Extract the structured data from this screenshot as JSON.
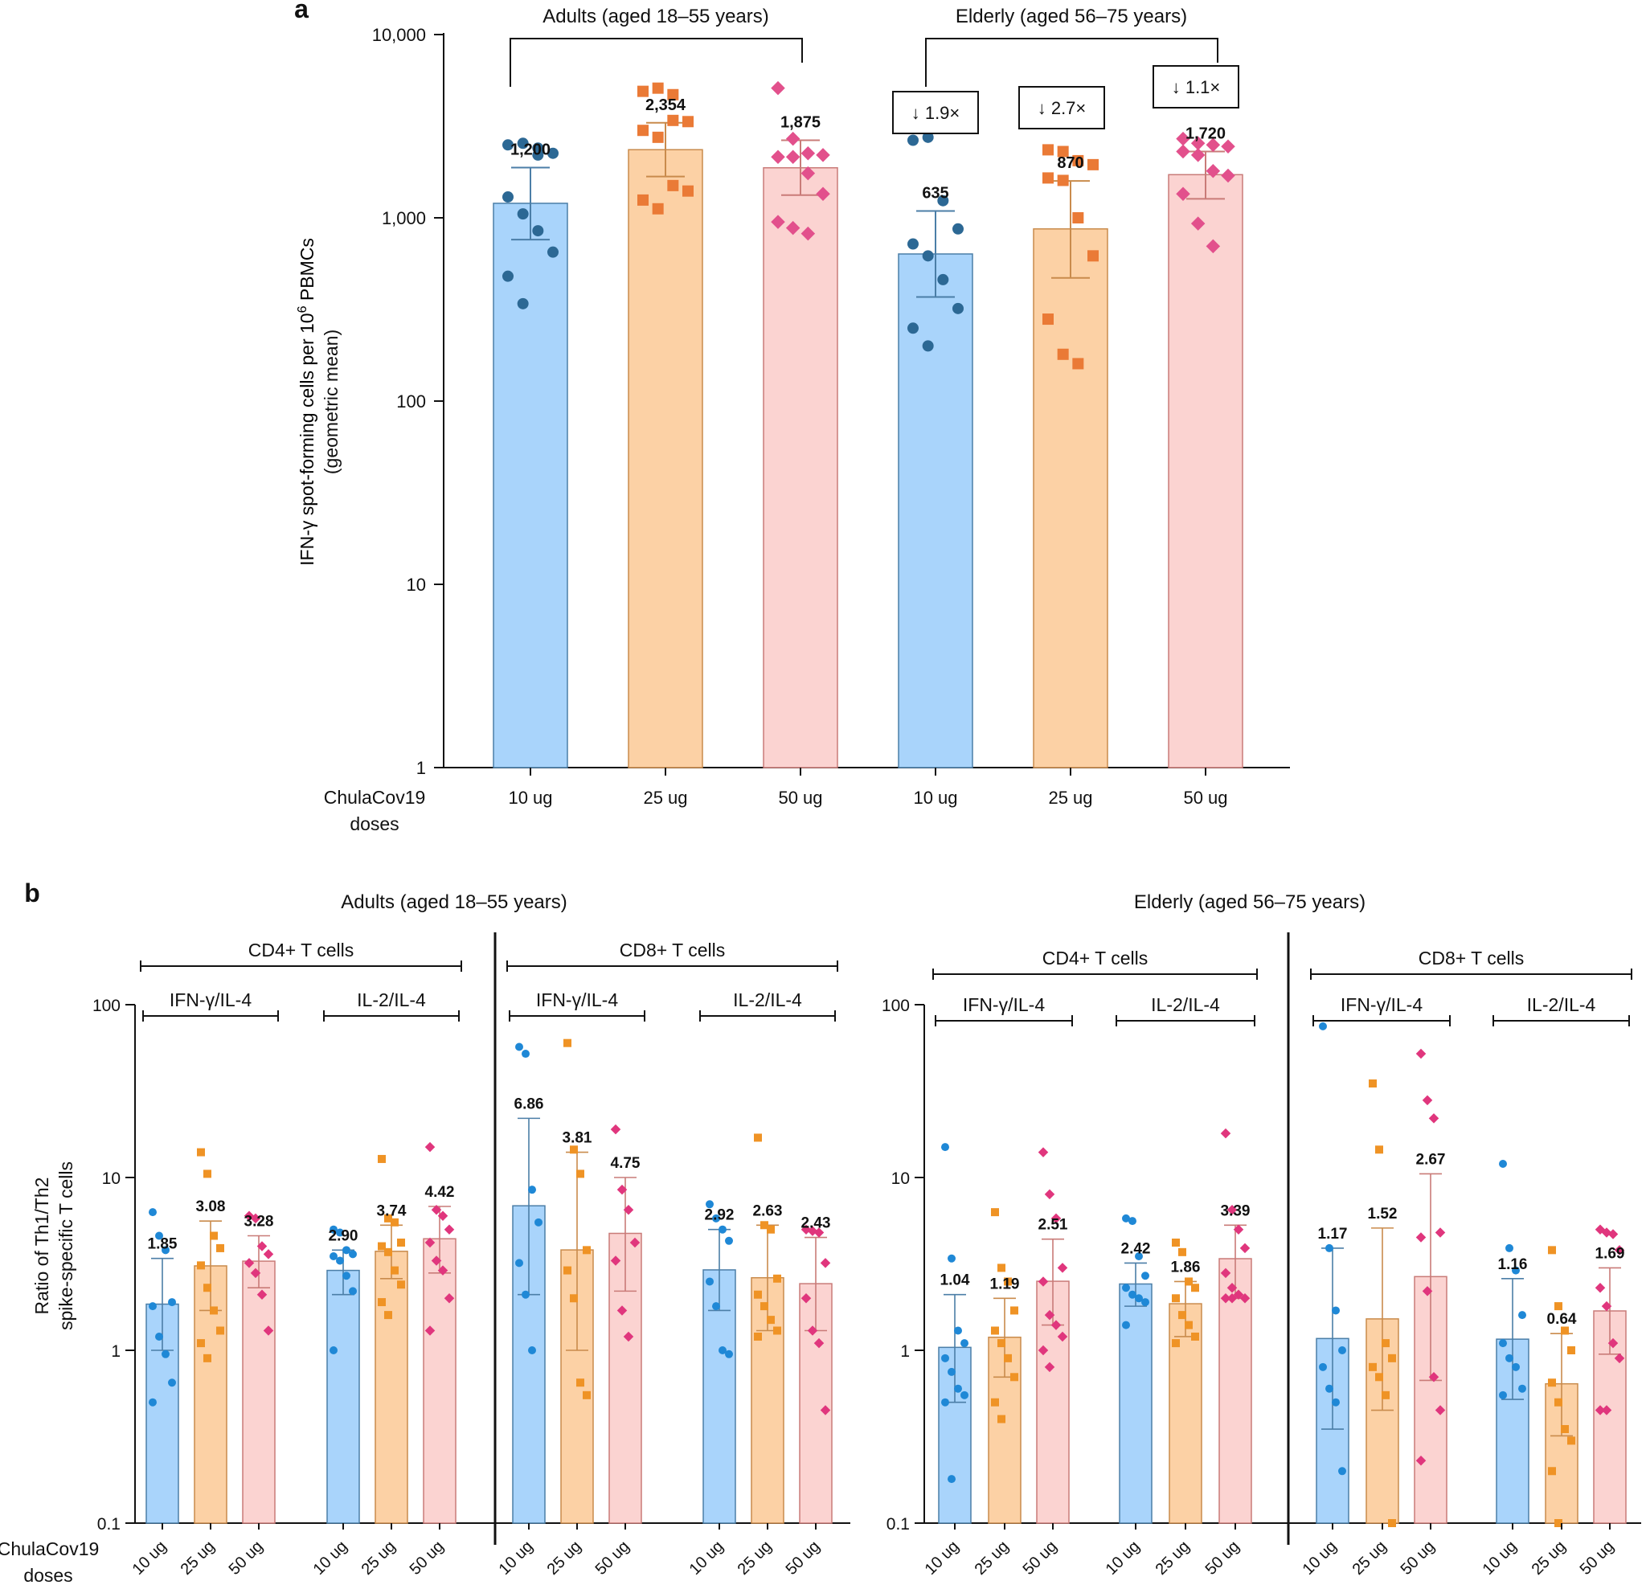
{
  "colors": {
    "blue_fill": "#a9d4fb",
    "blue_stroke": "#4b7ea7",
    "blue_point": "#2c6894",
    "blue_point_b": "#1f88d6",
    "orange_fill": "#fcd1a5",
    "orange_stroke": "#c98b4c",
    "orange_point": "#ea7a36",
    "orange_point_b": "#ef9325",
    "pink_fill": "#fbd3d1",
    "pink_stroke": "#c97b78",
    "pink_point": "#e2508c",
    "pink_point_b": "#e0367d",
    "axis": "#111111"
  },
  "chart_data": [
    {
      "panel_label": "a",
      "type": "bar",
      "yscale": "log",
      "ylim": [
        1,
        10000
      ],
      "yticks": [
        "1",
        "10",
        "100",
        "1,000",
        "10,000"
      ],
      "ylabel": "IFN-γ spot-forming cells per 10^6 PBMCs",
      "ylabel_line1_pre": "IFN-γ spot-forming cells per 10",
      "ylabel_line1_sup": "6",
      "ylabel_line1_post": " PBMCs",
      "ylabel_line2": "(geometric mean)",
      "xlabel_line1": "ChulaCov19",
      "xlabel_line2": "doses",
      "categories": [
        "10 ug",
        "25 ug",
        "50 ug",
        "10 ug",
        "25 ug",
        "50 ug"
      ],
      "groups": [
        {
          "label": "Adults (aged 18–55 years)"
        },
        {
          "label": "Elderly (aged 56–75 years)"
        }
      ],
      "fold_labels": [
        "↓ 1.9×",
        "↓ 2.7×",
        "↓ 1.1×"
      ],
      "bars": [
        {
          "dose": "10 ug",
          "color": "blue",
          "value": 1200,
          "label": "1,200",
          "err": [
            760,
            1880
          ],
          "points": [
            2500,
            2550,
            2200,
            2250,
            1300,
            1050,
            850,
            650,
            480,
            340,
            2400
          ]
        },
        {
          "dose": "25 ug",
          "color": "orange",
          "value": 2354,
          "label": "2,354",
          "err": [
            1680,
            3300
          ],
          "points": [
            4900,
            5100,
            3400,
            3350,
            3000,
            2750,
            1500,
            1400,
            1250,
            1120,
            4700
          ]
        },
        {
          "dose": "50 ug",
          "color": "pink",
          "value": 1875,
          "label": "1,875",
          "err": [
            1330,
            2650
          ],
          "points": [
            5100,
            2700,
            2250,
            2200,
            2150,
            2150,
            1750,
            1350,
            950,
            880,
            820
          ]
        },
        {
          "dose": "10 ug",
          "color": "blue",
          "value": 635,
          "label": "635",
          "err": [
            370,
            1090
          ],
          "points": [
            2650,
            2750,
            1240,
            870,
            720,
            620,
            460,
            320,
            250,
            200
          ]
        },
        {
          "dose": "25 ug",
          "color": "orange",
          "value": 870,
          "label": "870",
          "err": [
            470,
            1590
          ],
          "points": [
            2350,
            2300,
            2050,
            1950,
            1650,
            1600,
            1000,
            620,
            280,
            180,
            160
          ]
        },
        {
          "dose": "50 ug",
          "color": "pink",
          "value": 1720,
          "label": "1,720",
          "err": [
            1270,
            2300
          ],
          "points": [
            2700,
            2550,
            2500,
            2450,
            2300,
            2200,
            1800,
            1700,
            1350,
            930,
            700
          ]
        }
      ]
    },
    {
      "panel_label": "b",
      "type": "bar",
      "yscale": "log",
      "ylim": [
        0.1,
        100
      ],
      "yticks": [
        "0.1",
        "1",
        "10",
        "100"
      ],
      "ylabel_line1": "Ratio of Th1/Th2",
      "ylabel_line2": "spike-specific T cells",
      "xlabel_line1": "ChulaCov19",
      "xlabel_line2": "doses",
      "doses": [
        "10 ug",
        "25 ug",
        "50 ug"
      ],
      "groups": [
        {
          "label": "Adults (aged 18–55 years)",
          "subsets": [
            {
              "cell": "CD4+ T cells",
              "ratios": [
                {
                  "name": "IFN-γ/IL-4",
                  "bars": [
                    {
                      "value": 1.85,
                      "label": "1.85",
                      "err": [
                        1.0,
                        3.4
                      ],
                      "points": [
                        6.3,
                        4.6,
                        3.8,
                        1.9,
                        1.8,
                        1.2,
                        0.95,
                        0.65,
                        0.5
                      ]
                    },
                    {
                      "value": 3.08,
                      "label": "3.08",
                      "err": [
                        1.7,
                        5.6
                      ],
                      "points": [
                        14.0,
                        10.5,
                        4.6,
                        3.9,
                        3.1,
                        2.3,
                        1.7,
                        1.3,
                        1.1,
                        0.9
                      ]
                    },
                    {
                      "value": 3.28,
                      "label": "3.28",
                      "err": [
                        2.3,
                        4.6
                      ],
                      "points": [
                        6.0,
                        5.8,
                        4.0,
                        3.6,
                        3.2,
                        2.8,
                        2.1,
                        1.3
                      ]
                    }
                  ]
                },
                {
                  "name": "IL-2/IL-4",
                  "bars": [
                    {
                      "value": 2.9,
                      "label": "2.90",
                      "err": [
                        2.1,
                        3.8
                      ],
                      "points": [
                        5.0,
                        4.8,
                        3.8,
                        3.6,
                        3.5,
                        3.3,
                        2.7,
                        2.2,
                        1.0
                      ]
                    },
                    {
                      "value": 3.74,
                      "label": "3.74",
                      "err": [
                        2.6,
                        5.3
                      ],
                      "points": [
                        12.8,
                        5.8,
                        5.5,
                        4.2,
                        4.0,
                        3.7,
                        2.9,
                        2.4,
                        1.9,
                        1.6
                      ]
                    },
                    {
                      "value": 4.42,
                      "label": "4.42",
                      "err": [
                        2.8,
                        6.8
                      ],
                      "points": [
                        15.0,
                        6.5,
                        6.0,
                        5.0,
                        4.2,
                        3.3,
                        2.9,
                        2.0,
                        1.3
                      ]
                    }
                  ]
                }
              ]
            },
            {
              "cell": "CD8+ T cells",
              "ratios": [
                {
                  "name": "IFN-γ/IL-4",
                  "bars": [
                    {
                      "value": 6.86,
                      "label": "6.86",
                      "err": [
                        2.1,
                        22.0
                      ],
                      "points": [
                        57,
                        52,
                        8.5,
                        5.5,
                        3.2,
                        2.1,
                        1.0
                      ]
                    },
                    {
                      "value": 3.81,
                      "label": "3.81",
                      "err": [
                        1.0,
                        14.0
                      ],
                      "points": [
                        60,
                        14.5,
                        10.5,
                        3.8,
                        2.9,
                        2.0,
                        0.65,
                        0.55
                      ]
                    },
                    {
                      "value": 4.75,
                      "label": "4.75",
                      "err": [
                        2.2,
                        10.0
                      ],
                      "points": [
                        19.0,
                        8.5,
                        6.5,
                        4.2,
                        3.3,
                        1.7,
                        1.2
                      ]
                    }
                  ]
                },
                {
                  "name": "IL-2/IL-4",
                  "bars": [
                    {
                      "value": 2.92,
                      "label": "2.92",
                      "err": [
                        1.7,
                        5.0
                      ],
                      "points": [
                        7.0,
                        5.8,
                        5.0,
                        4.3,
                        2.5,
                        1.8,
                        1.0,
                        0.95
                      ]
                    },
                    {
                      "value": 2.63,
                      "label": "2.63",
                      "err": [
                        1.3,
                        5.3
                      ],
                      "points": [
                        17.0,
                        5.3,
                        5.0,
                        2.6,
                        2.1,
                        1.8,
                        1.5,
                        1.3,
                        1.2
                      ]
                    },
                    {
                      "value": 2.43,
                      "label": "2.43",
                      "err": [
                        1.3,
                        4.5
                      ],
                      "points": [
                        5.0,
                        4.9,
                        4.8,
                        3.2,
                        2.0,
                        1.3,
                        1.1,
                        0.45
                      ]
                    }
                  ]
                }
              ]
            }
          ]
        },
        {
          "label": "Elderly (aged 56–75 years)",
          "subsets": [
            {
              "cell": "CD4+ T cells",
              "ratios": [
                {
                  "name": "IFN-γ/IL-4",
                  "bars": [
                    {
                      "value": 1.04,
                      "label": "1.04",
                      "err": [
                        0.5,
                        2.1
                      ],
                      "points": [
                        15.0,
                        3.4,
                        1.3,
                        1.1,
                        0.9,
                        0.75,
                        0.6,
                        0.55,
                        0.5,
                        0.18
                      ]
                    },
                    {
                      "value": 1.19,
                      "label": "1.19",
                      "err": [
                        0.7,
                        2.0
                      ],
                      "points": [
                        6.3,
                        3.0,
                        2.5,
                        1.7,
                        1.3,
                        1.1,
                        0.9,
                        0.7,
                        0.5,
                        0.4
                      ]
                    },
                    {
                      "value": 2.51,
                      "label": "2.51",
                      "err": [
                        1.4,
                        4.4
                      ],
                      "points": [
                        14.0,
                        8.0,
                        5.8,
                        3.0,
                        2.5,
                        1.6,
                        1.4,
                        1.2,
                        1.0,
                        0.8
                      ]
                    }
                  ]
                },
                {
                  "name": "IL-2/IL-4",
                  "bars": [
                    {
                      "value": 2.42,
                      "label": "2.42",
                      "err": [
                        1.8,
                        3.2
                      ],
                      "points": [
                        5.8,
                        5.6,
                        3.5,
                        2.7,
                        2.3,
                        2.1,
                        2.0,
                        1.9,
                        1.4
                      ]
                    },
                    {
                      "value": 1.86,
                      "label": "1.86",
                      "err": [
                        1.2,
                        2.5
                      ],
                      "points": [
                        4.2,
                        3.7,
                        2.5,
                        2.3,
                        2.0,
                        1.6,
                        1.4,
                        1.2,
                        1.1
                      ]
                    },
                    {
                      "value": 3.39,
                      "label": "3.39",
                      "err": [
                        2.0,
                        5.3
                      ],
                      "points": [
                        18.0,
                        6.5,
                        5.0,
                        3.9,
                        2.8,
                        2.3,
                        2.1,
                        2.0,
                        2.0,
                        2.0
                      ]
                    }
                  ]
                }
              ]
            },
            {
              "cell": "CD8+ T cells",
              "ratios": [
                {
                  "name": "IFN-γ/IL-4",
                  "bars": [
                    {
                      "value": 1.17,
                      "label": "1.17",
                      "err": [
                        0.35,
                        3.9
                      ],
                      "points": [
                        75,
                        3.9,
                        1.7,
                        1.0,
                        0.8,
                        0.6,
                        0.5,
                        0.2
                      ]
                    },
                    {
                      "value": 1.52,
                      "label": "1.52",
                      "err": [
                        0.45,
                        5.1
                      ],
                      "points": [
                        35,
                        14.5,
                        1.1,
                        0.9,
                        0.8,
                        0.7,
                        0.55,
                        0.1
                      ]
                    },
                    {
                      "value": 2.67,
                      "label": "2.67",
                      "err": [
                        0.67,
                        10.5
                      ],
                      "points": [
                        52,
                        28,
                        22,
                        4.8,
                        4.5,
                        2.2,
                        0.7,
                        0.45,
                        0.23
                      ]
                    }
                  ]
                },
                {
                  "name": "IL-2/IL-4",
                  "bars": [
                    {
                      "value": 1.16,
                      "label": "1.16",
                      "err": [
                        0.52,
                        2.6
                      ],
                      "points": [
                        12.0,
                        3.9,
                        2.9,
                        1.6,
                        1.1,
                        0.9,
                        0.8,
                        0.6,
                        0.55
                      ]
                    },
                    {
                      "value": 0.64,
                      "label": "0.64",
                      "err": [
                        0.32,
                        1.25
                      ],
                      "points": [
                        3.8,
                        1.8,
                        1.3,
                        1.0,
                        0.65,
                        0.5,
                        0.35,
                        0.3,
                        0.2,
                        0.1
                      ]
                    },
                    {
                      "value": 1.69,
                      "label": "1.69",
                      "err": [
                        0.95,
                        3.0
                      ],
                      "points": [
                        5.0,
                        4.8,
                        4.7,
                        3.8,
                        2.3,
                        1.8,
                        1.1,
                        0.9,
                        0.45,
                        0.45
                      ]
                    }
                  ]
                }
              ]
            }
          ]
        }
      ]
    }
  ]
}
